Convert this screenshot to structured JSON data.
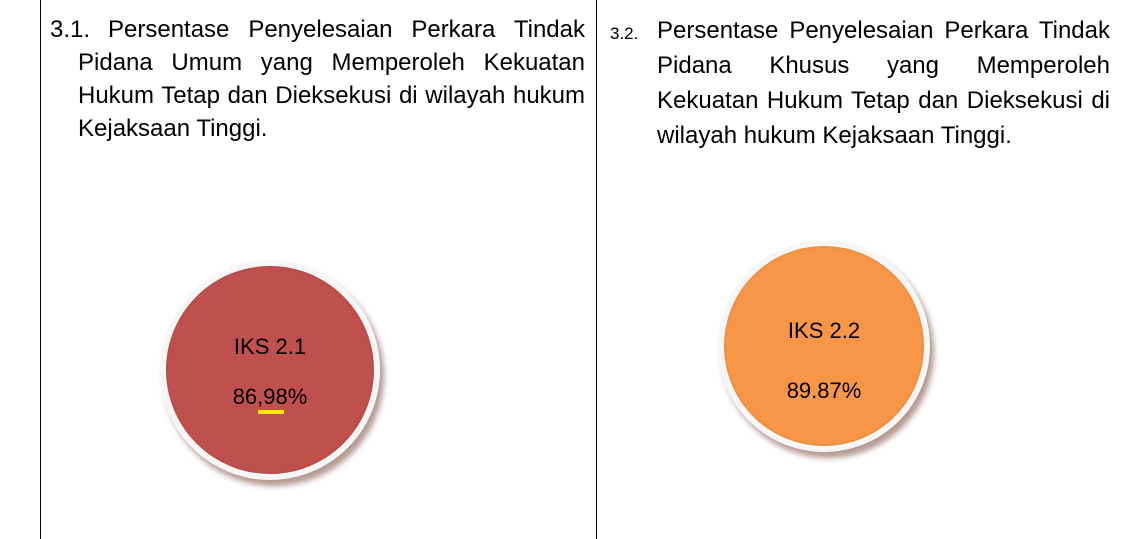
{
  "cells": [
    {
      "number": "3.1.",
      "text": "Persentase Penyelesaian Perkara Tindak Pidana Umum yang Memperoleh Kekuatan Hukum Tetap dan Dieksekusi di wilayah hukum Kejaksaan Tinggi.",
      "badge": {
        "label": "IKS 2.1",
        "value": "86,98%"
      }
    },
    {
      "number": "3.2.",
      "text": "Persentase Penyelesaian Perkara Tindak Pidana Khusus yang Memperoleh Kekuatan Hukum Tetap dan Dieksekusi di wilayah hukum Kejaksaan Tinggi.",
      "badge": {
        "label": "IKS 2.2",
        "value": "89.87%"
      }
    }
  ]
}
